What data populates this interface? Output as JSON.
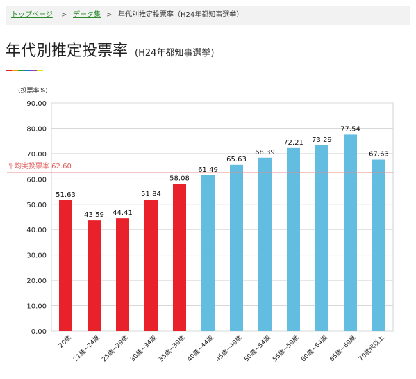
{
  "breadcrumb": {
    "items": [
      "トップページ",
      "データ集",
      "年代別推定投票率（H24年都知事選挙）"
    ],
    "separator": ">"
  },
  "title": {
    "main": "年代別推定投票率",
    "sub": "(H24年都知事選挙)",
    "accent_colors": [
      "#e8212b",
      "#f39800",
      "#2a9a3a",
      "#1e6fd8",
      "#8e44ad",
      "#e8e000"
    ]
  },
  "chart_data": {
    "type": "bar",
    "ylabel": "(投票率%)",
    "ylim": [
      0,
      90
    ],
    "yticks": [
      "0.00",
      "10.00",
      "20.00",
      "30.00",
      "40.00",
      "50.00",
      "60.00",
      "70.00",
      "80.00",
      "90.00"
    ],
    "grid": true,
    "categories": [
      "20歳",
      "21歳~24歳",
      "25歳~29歳",
      "30歳~34歳",
      "35歳~39歳",
      "40歳~44歳",
      "45歳~49歳",
      "50歳~54歳",
      "55歳~59歳",
      "60歳~64歳",
      "65歳~69歳",
      "70歳代以上"
    ],
    "values": [
      51.63,
      43.59,
      44.41,
      51.84,
      58.08,
      61.49,
      65.63,
      68.39,
      72.21,
      73.29,
      77.54,
      67.63
    ],
    "value_labels": [
      "51.63",
      "43.59",
      "44.41",
      "51.84",
      "58.08",
      "61.49",
      "65.63",
      "68.39",
      "72.21",
      "73.29",
      "77.54",
      "67.63"
    ],
    "bar_colors": [
      "#e8212b",
      "#e8212b",
      "#e8212b",
      "#e8212b",
      "#e8212b",
      "#62bde0",
      "#62bde0",
      "#62bde0",
      "#62bde0",
      "#62bde0",
      "#62bde0",
      "#62bde0"
    ],
    "average": {
      "label": "平均実投票率 62.60",
      "value": 62.6,
      "color": "#e98b8b"
    }
  }
}
